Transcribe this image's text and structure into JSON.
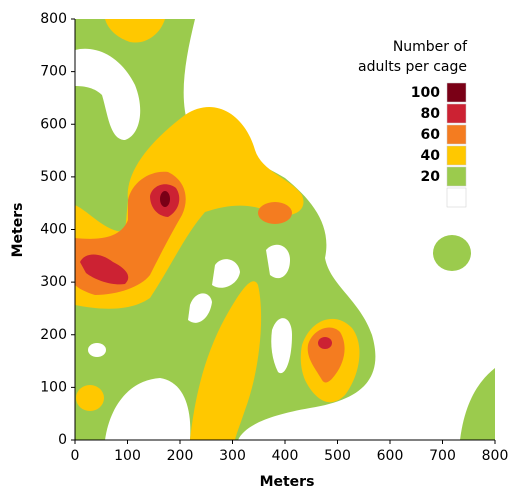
{
  "chart_data": {
    "type": "contour",
    "xlabel": "Meters",
    "ylabel": "Meters",
    "xlim": [
      0,
      800
    ],
    "ylim": [
      0,
      800
    ],
    "xticks": [
      0,
      100,
      200,
      300,
      400,
      500,
      600,
      700,
      800
    ],
    "yticks": [
      0,
      100,
      200,
      300,
      400,
      500,
      600,
      700,
      800
    ],
    "legend_title": [
      "Number of",
      "adults per cage"
    ],
    "levels": [
      100,
      80,
      60,
      40,
      20,
      null
    ],
    "colors": [
      "#7a0016",
      "#cc2233",
      "#f47c20",
      "#ffc800",
      "#9bcb4d",
      "#ffffff"
    ]
  }
}
